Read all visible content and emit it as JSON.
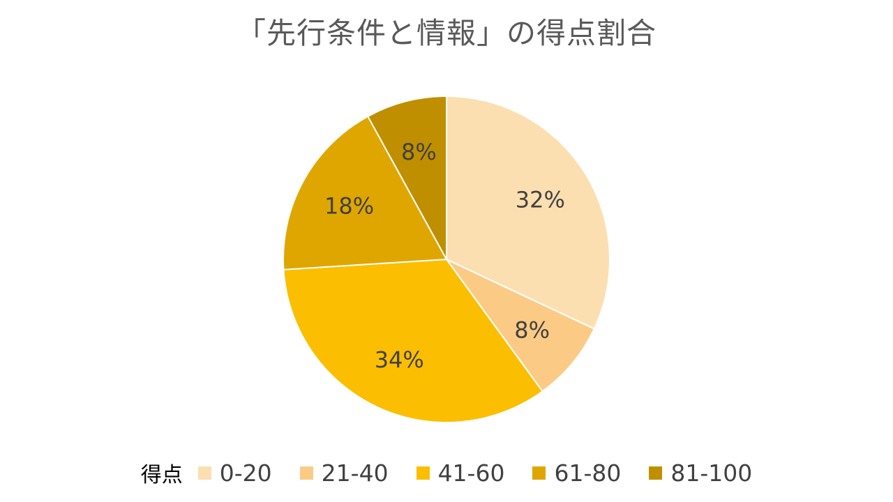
{
  "chart_data": {
    "type": "pie",
    "title": "「先行条件と情報」の得点割合",
    "legend_title": "得点",
    "legend_position": "bottom",
    "start_angle_deg": 0,
    "direction": "clockwise",
    "slices": [
      {
        "label": "0-20",
        "value": 32,
        "data_label": "32%",
        "color": "#FCDFB0"
      },
      {
        "label": "21-40",
        "value": 8,
        "data_label": "8%",
        "color": "#FBCB86"
      },
      {
        "label": "41-60",
        "value": 34,
        "data_label": "34%",
        "color": "#FBBE00"
      },
      {
        "label": "61-80",
        "value": 18,
        "data_label": "18%",
        "color": "#DFA600"
      },
      {
        "label": "81-100",
        "value": 8,
        "data_label": "8%",
        "color": "#BF8F00"
      }
    ]
  }
}
